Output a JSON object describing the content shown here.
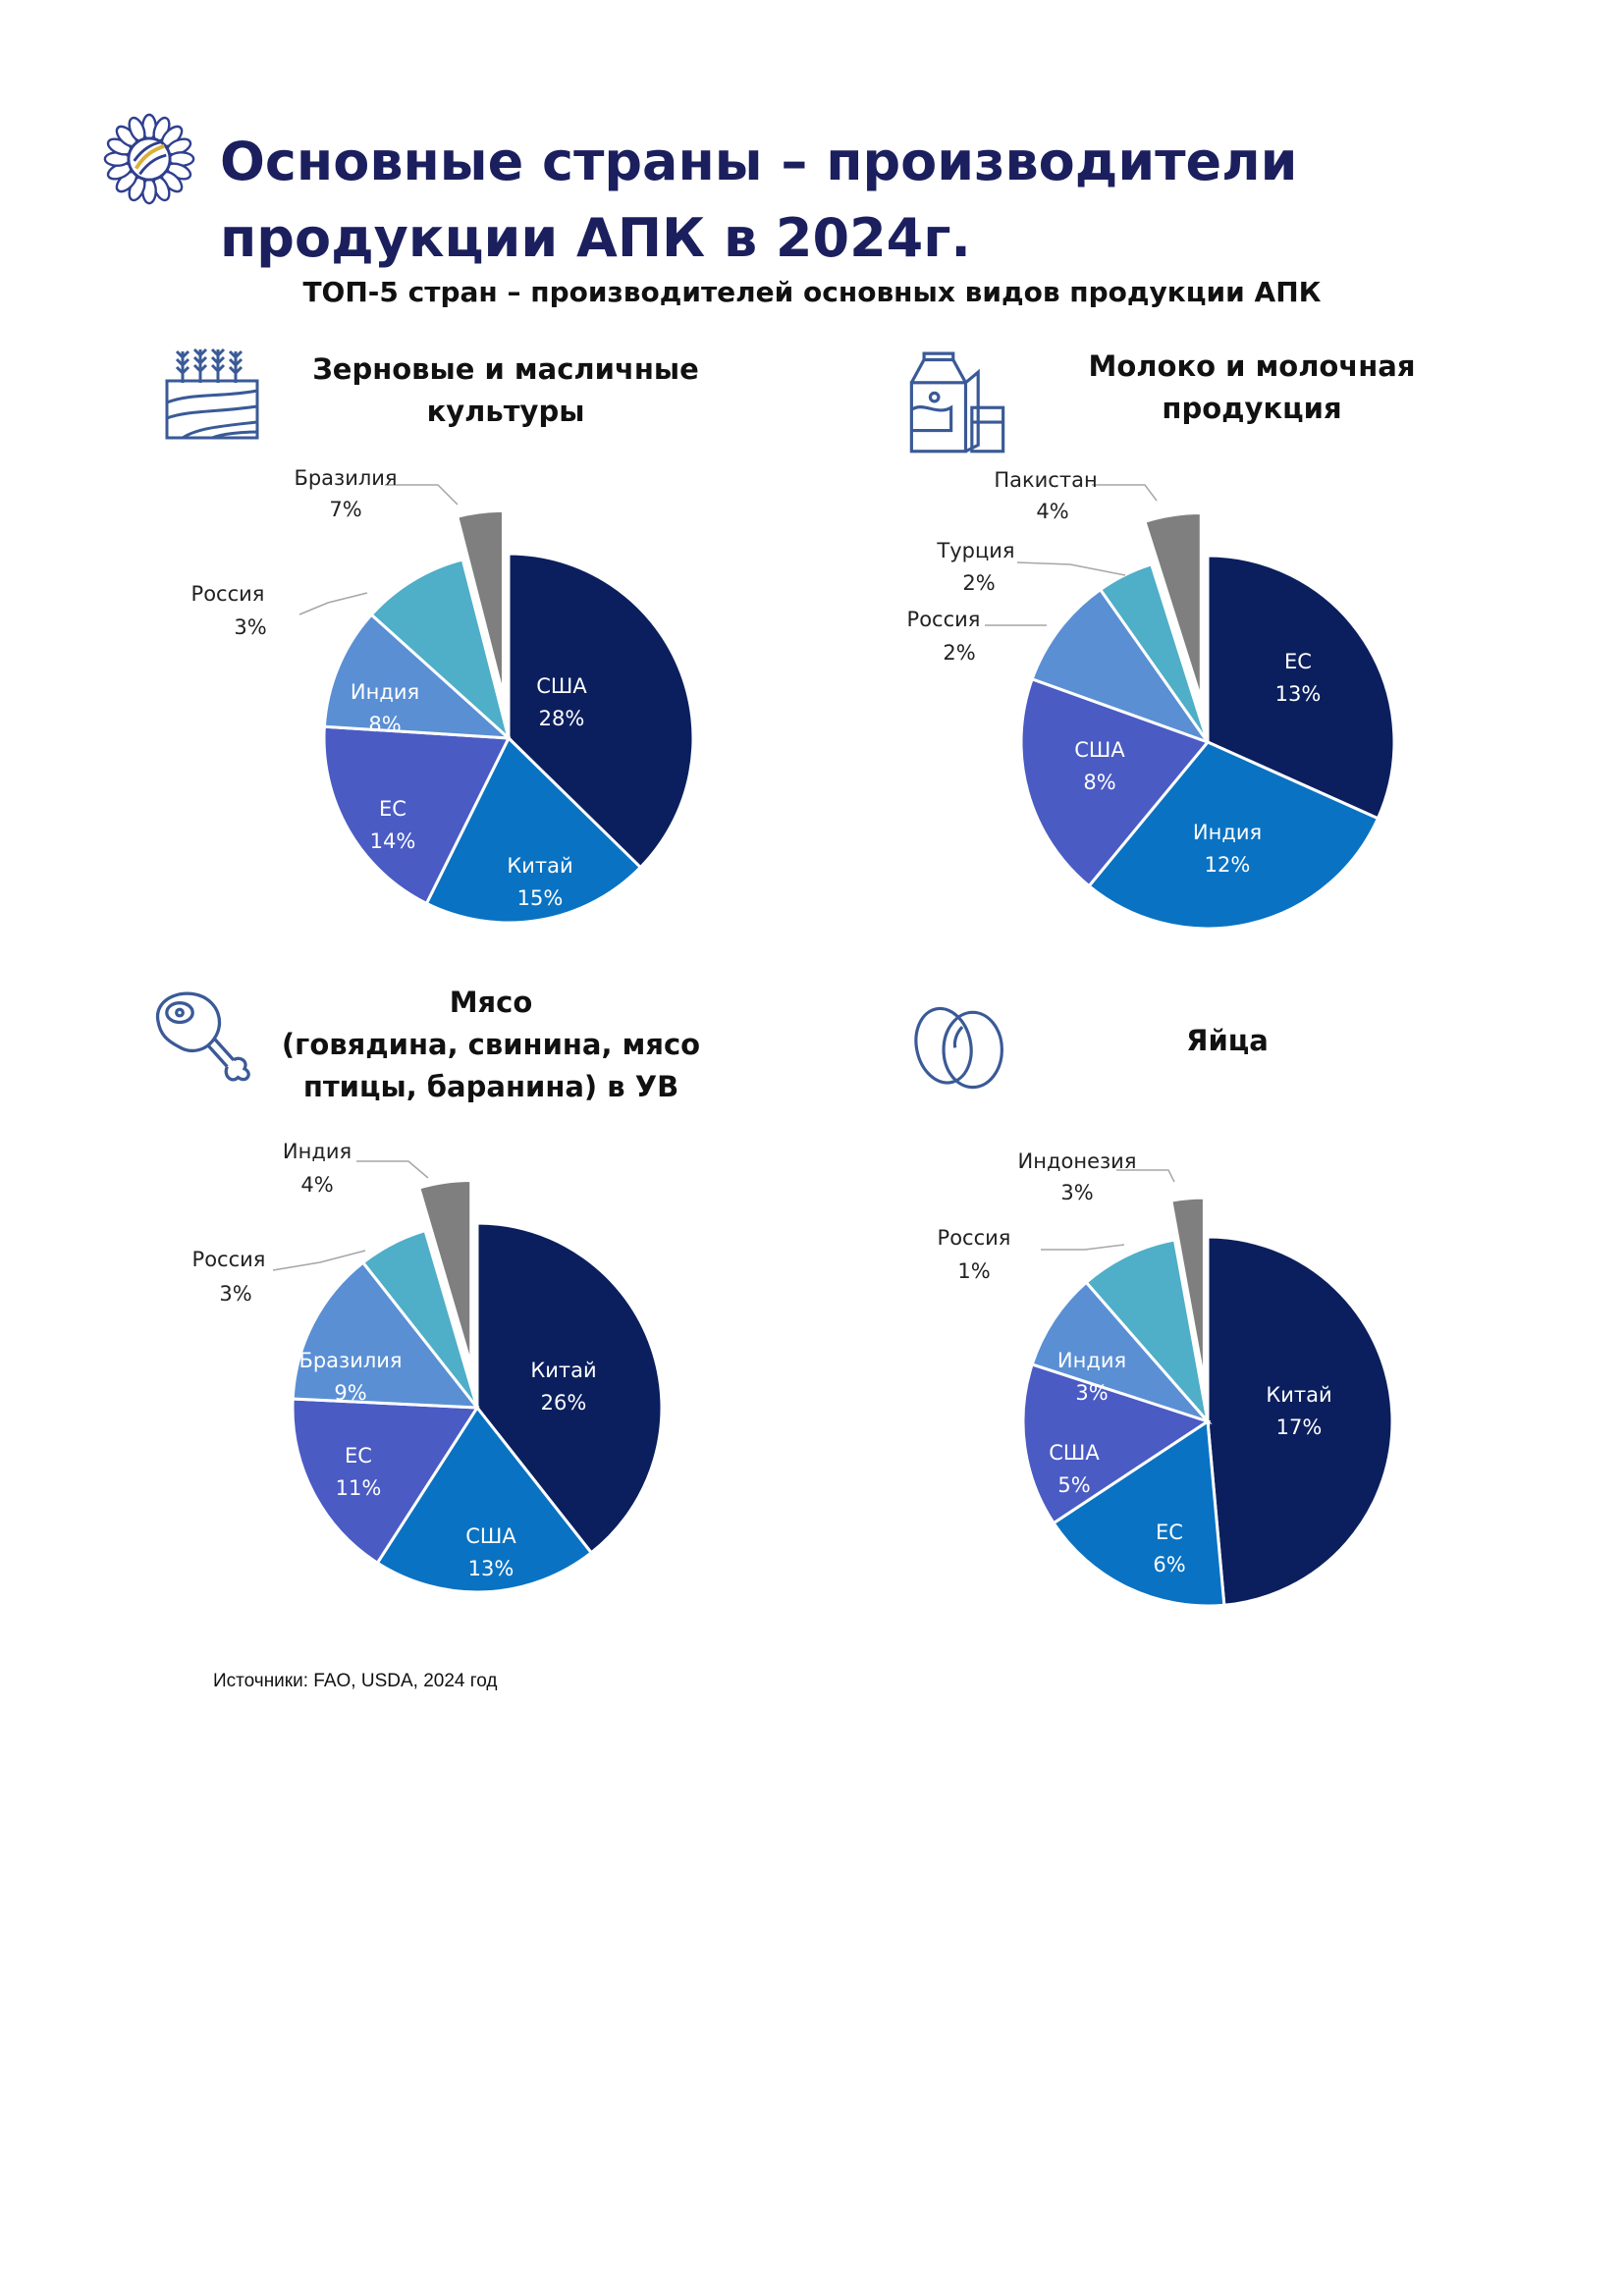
{
  "title": "Основные страны – производители продукции АПК в 2024г.",
  "subtitle": "ТОП-5 стран – производителей основных видов продукции АПК",
  "source": "Источники: FAO, USDA, 2024 год",
  "colors": {
    "title": "#1b1f5e",
    "icon": "#3a5a97",
    "navy": "#0b1f5e",
    "blue": "#0a72c2",
    "indigo": "#4a5bc4",
    "sky": "#5a8fd4",
    "teal": "#4faec8",
    "gray": "#7f7f7f"
  },
  "chart_data": [
    {
      "type": "pie",
      "title": [
        "Зерновые и масличные",
        "культуры"
      ],
      "icon": "wheat-field-icon",
      "series": [
        {
          "name": "США",
          "label": "28%",
          "value": 28,
          "color": "navy"
        },
        {
          "name": "Китай",
          "label": "15%",
          "value": 15,
          "color": "blue"
        },
        {
          "name": "ЕС",
          "label": "14%",
          "value": 14,
          "color": "indigo"
        },
        {
          "name": "Индия",
          "label": "8%",
          "value": 8,
          "color": "sky"
        },
        {
          "name": "Бразилия",
          "label": "7%",
          "value": 7,
          "color": "teal"
        },
        {
          "name": "Россия",
          "label": "3%",
          "value": 3,
          "color": "gray",
          "exploded": true
        }
      ]
    },
    {
      "type": "pie",
      "title": [
        "Молоко и молочная",
        "продукция"
      ],
      "icon": "milk-carton-icon",
      "series": [
        {
          "name": "ЕС",
          "label": "13%",
          "value": 13,
          "color": "navy"
        },
        {
          "name": "Индия",
          "label": "12%",
          "value": 12,
          "color": "blue"
        },
        {
          "name": "США",
          "label": "8%",
          "value": 8,
          "color": "indigo"
        },
        {
          "name": "Пакистан",
          "label": "4%",
          "value": 4,
          "color": "sky"
        },
        {
          "name": "Турция",
          "label": "2%",
          "value": 2,
          "color": "teal"
        },
        {
          "name": "Россия",
          "label": "2%",
          "value": 2,
          "color": "gray",
          "exploded": true
        }
      ]
    },
    {
      "type": "pie",
      "title": [
        "Мясо",
        "(говядина, свинина, мясо",
        "птицы, баранина) в УВ"
      ],
      "icon": "meat-leg-icon",
      "series": [
        {
          "name": "Китай",
          "label": "26%",
          "value": 26,
          "color": "navy"
        },
        {
          "name": "США",
          "label": "13%",
          "value": 13,
          "color": "blue"
        },
        {
          "name": "ЕС",
          "label": "11%",
          "value": 11,
          "color": "indigo"
        },
        {
          "name": "Бразилия",
          "label": "9%",
          "value": 9,
          "color": "sky"
        },
        {
          "name": "Индия",
          "label": "4%",
          "value": 4,
          "color": "teal"
        },
        {
          "name": "Россия",
          "label": "3%",
          "value": 3,
          "color": "gray",
          "exploded": true
        }
      ]
    },
    {
      "type": "pie",
      "title": [
        "Яйца"
      ],
      "icon": "eggs-icon",
      "series": [
        {
          "name": "Китай",
          "label": "17%",
          "value": 17,
          "color": "navy"
        },
        {
          "name": "ЕС",
          "label": "6%",
          "value": 6,
          "color": "blue"
        },
        {
          "name": "США",
          "label": "5%",
          "value": 5,
          "color": "indigo"
        },
        {
          "name": "Индия",
          "label": "3%",
          "value": 3,
          "color": "sky"
        },
        {
          "name": "Индонезия",
          "label": "3%",
          "value": 3,
          "color": "teal"
        },
        {
          "name": "Россия",
          "label": "1%",
          "value": 1,
          "color": "gray",
          "exploded": true
        }
      ]
    }
  ]
}
